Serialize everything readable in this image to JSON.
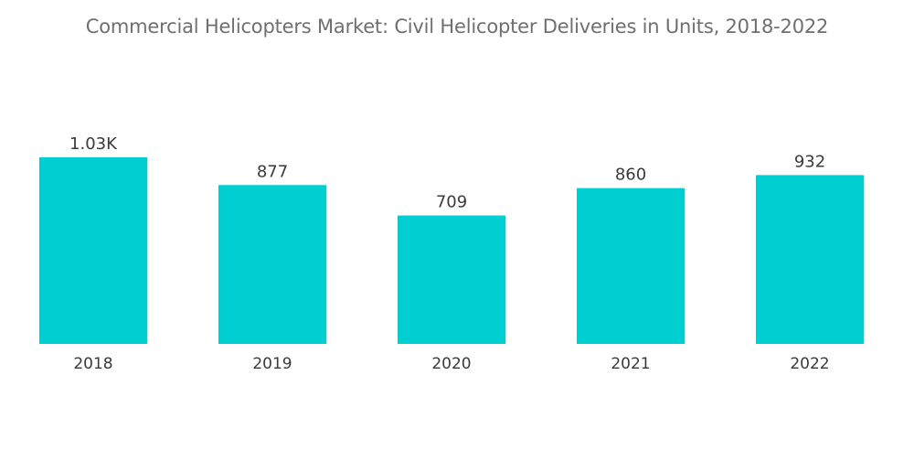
{
  "title": "Commercial Helicopters Market: Civil Helicopter Deliveries in Units, 2018-2022",
  "chart_data": {
    "type": "bar",
    "title": "Commercial Helicopters Market: Civil Helicopter Deliveries in Units, 2018-2022",
    "categories": [
      "2018",
      "2019",
      "2020",
      "2021",
      "2022"
    ],
    "values": [
      1030,
      877,
      709,
      860,
      932
    ],
    "value_labels": [
      "1.03K",
      "877",
      "709",
      "860",
      "932"
    ],
    "xlabel": "",
    "ylabel": "",
    "ylim": [
      0,
      1030
    ],
    "grid": false,
    "legend": "none",
    "bar_color": "#00cfd1"
  }
}
